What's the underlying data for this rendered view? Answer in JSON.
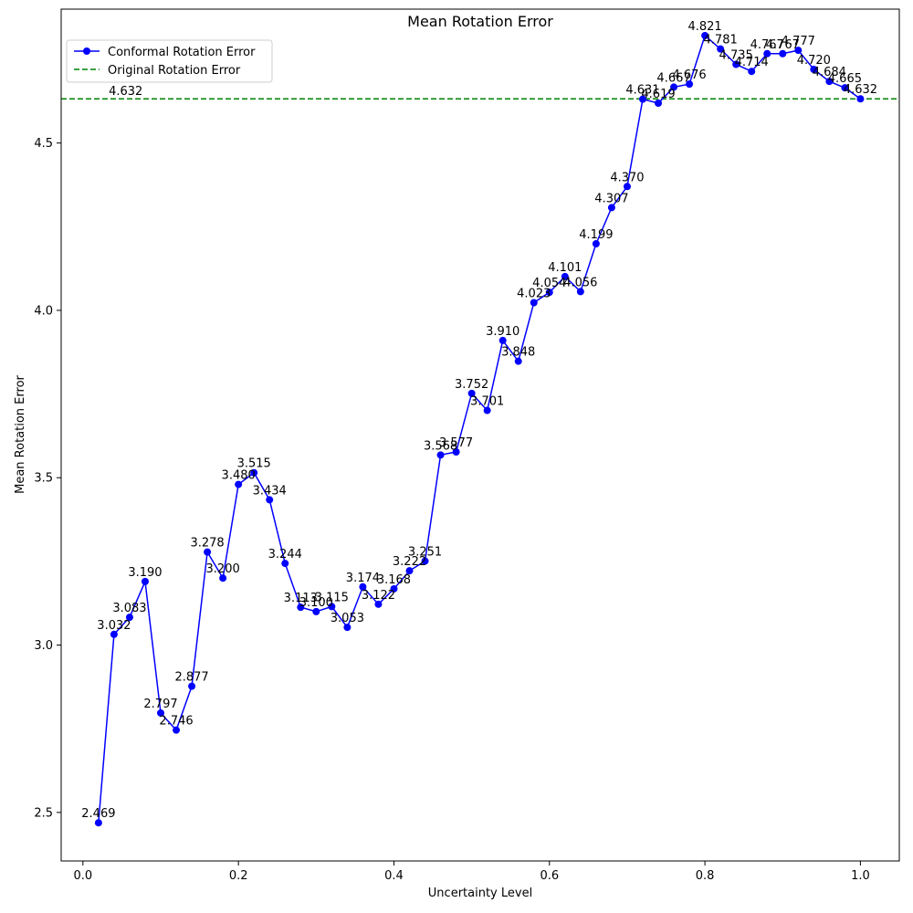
{
  "chart_data": {
    "type": "line",
    "title": "Mean Rotation Error",
    "xlabel": "Uncertainty Level",
    "ylabel": "Mean Rotation Error",
    "xlim": [
      -0.028,
      1.05
    ],
    "ylim": [
      2.355,
      4.9
    ],
    "xticks": [
      0.0,
      0.2,
      0.4,
      0.6,
      0.8,
      1.0
    ],
    "xtick_labels": [
      "0.0",
      "0.2",
      "0.4",
      "0.6",
      "0.8",
      "1.0"
    ],
    "yticks": [
      2.5,
      3.0,
      3.5,
      4.0,
      4.5
    ],
    "ytick_labels": [
      "2.5",
      "3.0",
      "3.5",
      "4.0",
      "4.5"
    ],
    "grid": false,
    "legend_position": "top-left",
    "series": [
      {
        "name": "Conformal Rotation Error",
        "color": "#0000ff",
        "marker": "circle",
        "x": [
          0.02,
          0.04,
          0.06,
          0.08,
          0.1,
          0.12,
          0.14,
          0.16,
          0.18,
          0.2,
          0.22,
          0.24,
          0.26,
          0.28,
          0.3,
          0.32,
          0.34,
          0.36,
          0.38,
          0.4,
          0.42,
          0.44,
          0.46,
          0.48,
          0.5,
          0.52,
          0.54,
          0.56,
          0.58,
          0.6,
          0.62,
          0.64,
          0.66,
          0.68,
          0.7,
          0.72,
          0.74,
          0.76,
          0.78,
          0.8,
          0.82,
          0.84,
          0.86,
          0.88,
          0.9,
          0.92,
          0.94,
          0.96,
          0.98,
          1.0
        ],
        "values": [
          2.469,
          3.032,
          3.083,
          3.19,
          2.797,
          2.746,
          2.877,
          3.278,
          3.2,
          3.48,
          3.515,
          3.434,
          3.244,
          3.113,
          3.1,
          3.115,
          3.053,
          3.174,
          3.122,
          3.168,
          3.222,
          3.251,
          3.568,
          3.577,
          3.752,
          3.701,
          3.91,
          3.848,
          4.023,
          4.054,
          4.101,
          4.056,
          4.199,
          4.307,
          4.37,
          4.631,
          4.619,
          4.667,
          4.676,
          4.821,
          4.781,
          4.735,
          4.714,
          4.767,
          4.767,
          4.777,
          4.72,
          4.684,
          4.665,
          4.632
        ],
        "labels": [
          "2.469",
          "3.032",
          "3.083",
          "3.190",
          "2.797",
          "2.746",
          "2.877",
          "3.278",
          "3.200",
          "3.480",
          "3.515",
          "3.434",
          "3.244",
          "3.113",
          "3.100",
          "3.115",
          "3.053",
          "3.174",
          "3.122",
          "3.168",
          "3.222",
          "3.251",
          "3.568",
          "3.577",
          "3.752",
          "3.701",
          "3.910",
          "3.848",
          "4.023",
          "4.054",
          "4.101",
          "4.056",
          "4.199",
          "4.307",
          "4.370",
          "4.631",
          "4.619",
          "4.667",
          "4.676",
          "4.821",
          "4.781",
          "4.735",
          "4.714",
          "4.767",
          "4.767",
          "4.777",
          "4.720",
          "4.684",
          "4.665",
          "4.632"
        ]
      }
    ],
    "reference_line": {
      "name": "Original Rotation Error",
      "value": 4.632,
      "label": "4.632",
      "label_x": 0.055,
      "color": "#008000",
      "style": "dashed"
    }
  }
}
